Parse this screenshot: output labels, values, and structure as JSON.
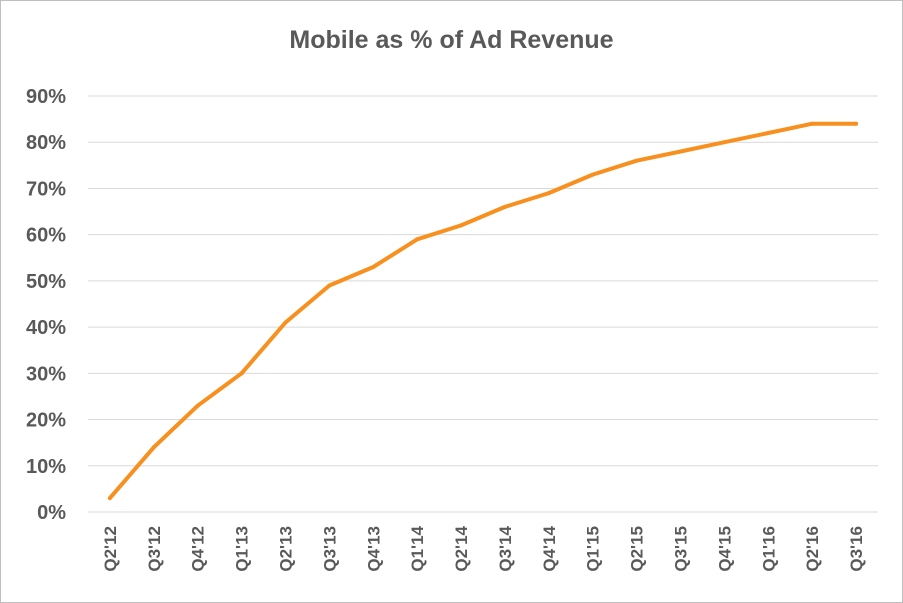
{
  "chart_data": {
    "type": "line",
    "title": "Mobile as % of Ad Revenue",
    "xlabel": "",
    "ylabel": "",
    "categories": [
      "Q2'12",
      "Q3'12",
      "Q4'12",
      "Q1'13",
      "Q2'13",
      "Q3'13",
      "Q4'13",
      "Q1'14",
      "Q2'14",
      "Q3'14",
      "Q4'14",
      "Q1'15",
      "Q2'15",
      "Q3'15",
      "Q4'15",
      "Q1'16",
      "Q2'16",
      "Q3'16"
    ],
    "series": [
      {
        "values": [
          3,
          14,
          23,
          30,
          41,
          49,
          53,
          59,
          62,
          66,
          69,
          73,
          76,
          78,
          80,
          82,
          84,
          84
        ]
      }
    ],
    "y_ticks": [
      "0%",
      "10%",
      "20%",
      "30%",
      "40%",
      "50%",
      "60%",
      "70%",
      "80%",
      "90%"
    ],
    "ylim": [
      0,
      90
    ],
    "grid": true,
    "legend": "none",
    "line_color": "#F7901E",
    "grid_color": "#d9d9d9"
  }
}
